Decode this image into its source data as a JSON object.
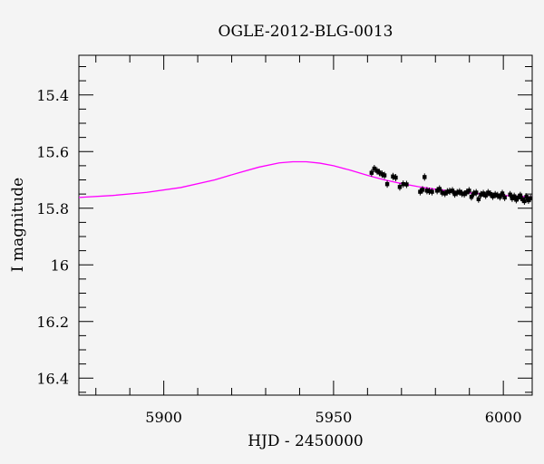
{
  "chart_data": {
    "type": "scatter",
    "title": "OGLE-2012-BLG-0013",
    "xlabel": "HJD - 2450000",
    "ylabel": "I magnitude",
    "xlim": [
      5875,
      6008.5
    ],
    "ylim": [
      16.46,
      15.26
    ],
    "y_inverted": true,
    "x_ticks": [
      5900,
      5950,
      6000
    ],
    "x_tick_labels": [
      "5900",
      "5950",
      "6000"
    ],
    "y_ticks": [
      15.4,
      15.6,
      15.8,
      16.0,
      16.2,
      16.4
    ],
    "y_tick_labels": [
      "15.4",
      "15.6",
      "15.8",
      "16",
      "16.2",
      "16.4"
    ],
    "grid": false,
    "series": [
      {
        "kind": "model",
        "color": "#ff00ff",
        "x": [
          5875,
          5885,
          5895,
          5905,
          5915,
          5922,
          5928,
          5934,
          5938,
          5942,
          5946,
          5950,
          5955,
          5960,
          5965,
          5970,
          5975,
          5980,
          5985,
          5990,
          5995,
          6000,
          6005,
          6008.5
        ],
        "y": [
          15.762,
          15.755,
          15.744,
          15.727,
          15.7,
          15.675,
          15.655,
          15.64,
          15.636,
          15.636,
          15.641,
          15.65,
          15.666,
          15.684,
          15.7,
          15.713,
          15.724,
          15.733,
          15.74,
          15.746,
          15.751,
          15.755,
          15.758,
          15.76
        ]
      },
      {
        "kind": "observations",
        "color": "#000000",
        "x": [
          5961.2,
          5962.0,
          5962.8,
          5963.5,
          5964.3,
          5965.0,
          5965.8,
          5967.5,
          5968.3,
          5969.5,
          5970.5,
          5971.5,
          5975.5,
          5976.2,
          5976.8,
          5977.5,
          5978.2,
          5979.0,
          5980.5,
          5981.2,
          5982.0,
          5982.8,
          5983.5,
          5984.2,
          5985.0,
          5985.7,
          5986.4,
          5987.1,
          5987.8,
          5988.5,
          5989.2,
          5989.9,
          5990.6,
          5991.3,
          5992.0,
          5992.7,
          5993.4,
          5994.1,
          5994.8,
          5995.5,
          5996.2,
          5996.9,
          5997.6,
          5998.3,
          5999.0,
          5999.7,
          6000.4,
          6002.0,
          6002.6,
          6003.2,
          6003.8,
          6004.4,
          6005.0,
          6005.6,
          6006.2,
          6006.8,
          6007.4,
          6008.0
        ],
        "y": [
          15.675,
          15.66,
          15.668,
          15.674,
          15.68,
          15.684,
          15.715,
          15.688,
          15.692,
          15.725,
          15.715,
          15.716,
          15.742,
          15.735,
          15.69,
          15.738,
          15.74,
          15.742,
          15.738,
          15.732,
          15.745,
          15.748,
          15.742,
          15.74,
          15.738,
          15.75,
          15.745,
          15.742,
          15.748,
          15.75,
          15.744,
          15.738,
          15.76,
          15.748,
          15.745,
          15.768,
          15.752,
          15.748,
          15.755,
          15.745,
          15.75,
          15.758,
          15.752,
          15.755,
          15.76,
          15.748,
          15.762,
          15.752,
          15.765,
          15.758,
          15.77,
          15.762,
          15.755,
          15.768,
          15.775,
          15.76,
          15.772,
          15.765
        ]
      }
    ]
  }
}
